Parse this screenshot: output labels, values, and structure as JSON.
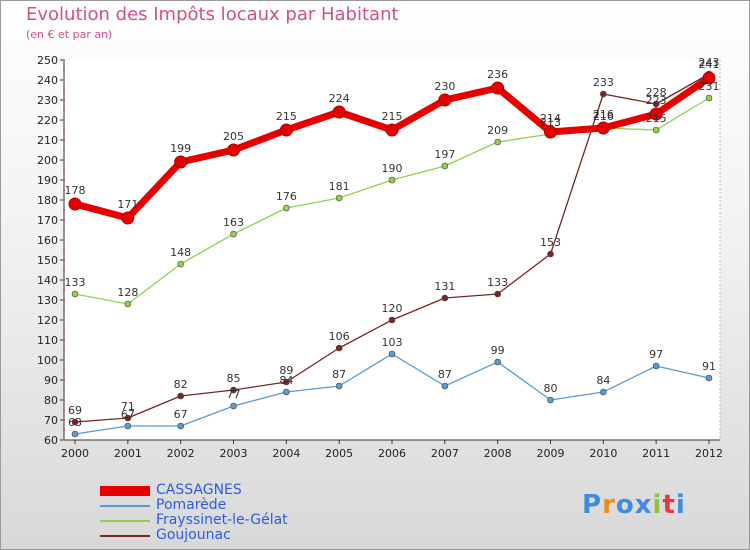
{
  "header": {
    "title": "Evolution des Impôts locaux par Habitant",
    "subtitle": "(en € et par an)"
  },
  "logo": {
    "letters": [
      "P",
      "r",
      "o",
      "x",
      "i",
      "t",
      "i"
    ],
    "colors": [
      "#3d8ce0",
      "#f08a1e",
      "#3d8ce0",
      "#3d8ce0",
      "#8bc43f",
      "#e23b3b",
      "#3d8ce0"
    ]
  },
  "chart_data": {
    "type": "line",
    "title": "Evolution des Impôts locaux par Habitant",
    "subtitle": "(en € et par an)",
    "x": [
      2000,
      2001,
      2002,
      2003,
      2004,
      2005,
      2006,
      2007,
      2008,
      2009,
      2010,
      2011,
      2012
    ],
    "ylim": [
      60,
      250
    ],
    "yticks": [
      60,
      70,
      80,
      90,
      100,
      110,
      120,
      130,
      140,
      150,
      160,
      170,
      180,
      190,
      200,
      210,
      220,
      230,
      240,
      250
    ],
    "grid": false,
    "legend_position": "bottom-left",
    "series": [
      {
        "name": "CASSAGNES",
        "color": "#e60000",
        "values": [
          178,
          171,
          199,
          205,
          215,
          224,
          215,
          230,
          236,
          214,
          216,
          223,
          241
        ],
        "labels": [
          "178",
          "171",
          "199",
          "205",
          "215",
          "224",
          "215",
          "230",
          "236",
          "214",
          "216",
          "223",
          "241"
        ]
      },
      {
        "name": "Pomarède",
        "color": "#5b9bd5",
        "values": [
          63,
          67,
          67,
          77,
          84,
          87,
          103,
          87,
          99,
          80,
          84,
          97,
          91
        ],
        "labels": [
          "63",
          "67",
          "67",
          "77",
          "84",
          "87",
          "103",
          "87",
          "99",
          "80",
          "84",
          "97",
          "91"
        ]
      },
      {
        "name": "Frayssinet-le-Gélat",
        "color": "#8fd24e",
        "values": [
          133,
          128,
          148,
          163,
          176,
          181,
          190,
          197,
          209,
          213,
          216,
          215,
          231
        ],
        "labels": [
          "133",
          "128",
          "148",
          "163",
          "176",
          "181",
          "190",
          "197",
          "209",
          "213",
          "216",
          "215",
          "231"
        ]
      },
      {
        "name": "Goujounac",
        "color": "#7a2424",
        "values": [
          69,
          71,
          82,
          85,
          89,
          106,
          120,
          131,
          133,
          153,
          233,
          228,
          243
        ],
        "labels": [
          "69",
          "71",
          "82",
          "85",
          "89",
          "106",
          "120",
          "131",
          "133",
          "153",
          "233",
          "228",
          "243"
        ]
      }
    ]
  }
}
